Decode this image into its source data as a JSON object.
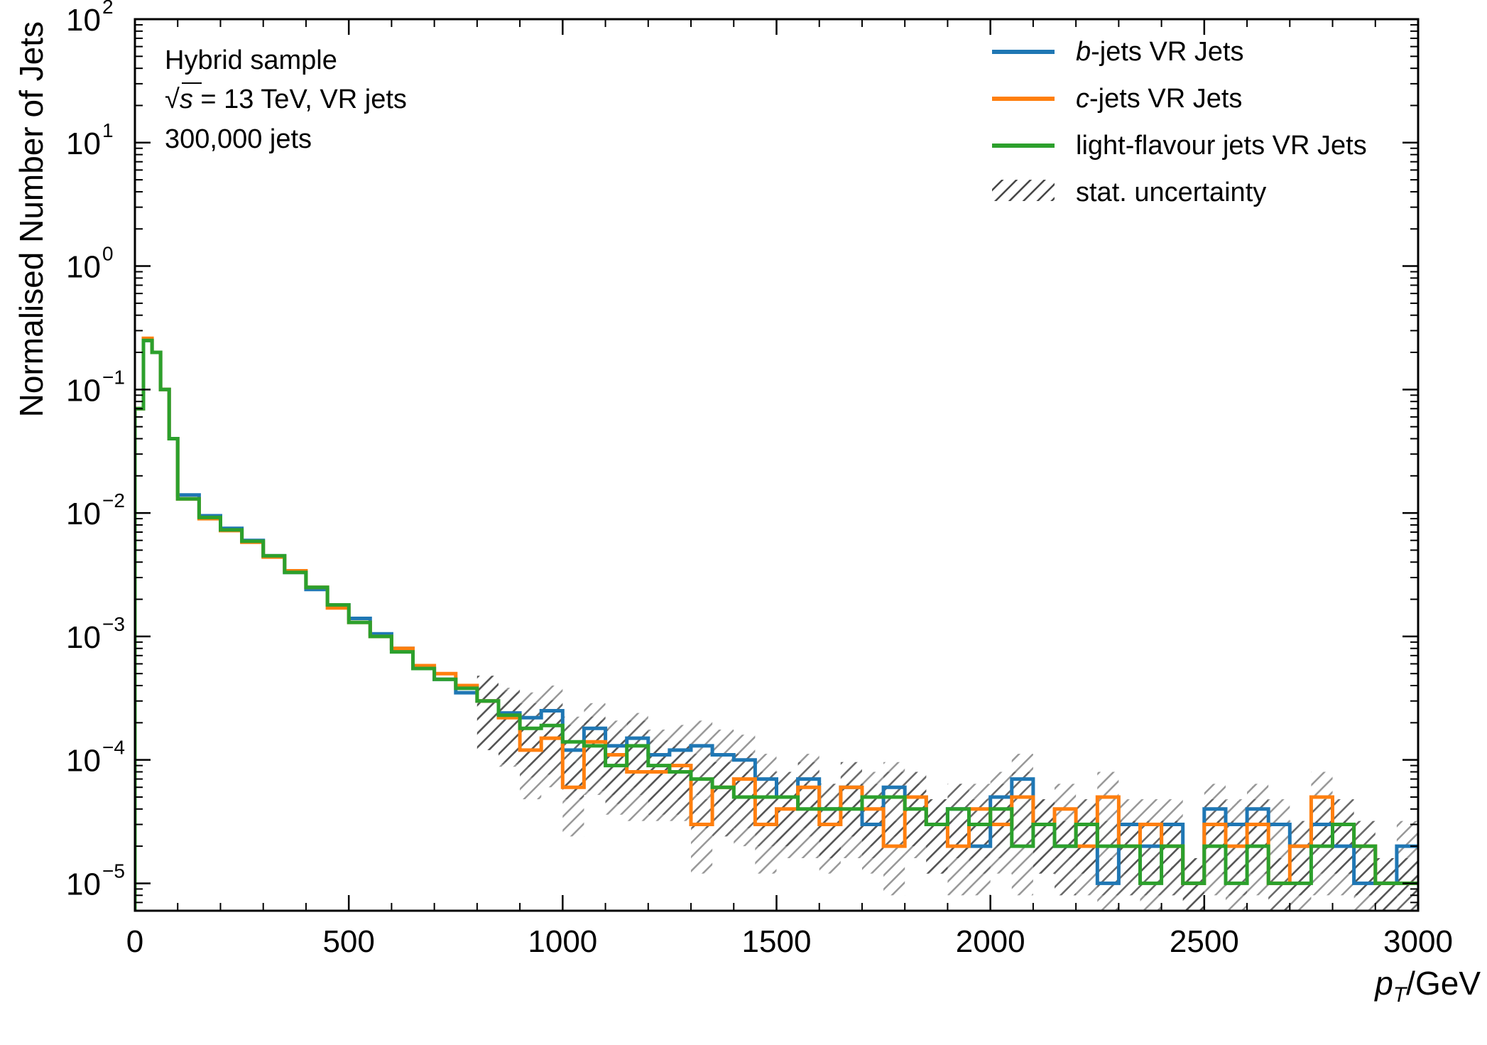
{
  "chart_data": {
    "type": "line",
    "title": "",
    "xlabel": "p_T/GeV",
    "xlabel_parts": {
      "symbol": "p",
      "subscript": "T",
      "unit": "/GeV"
    },
    "ylabel": "Normalised Number of Jets",
    "xlim": [
      0,
      3000
    ],
    "ylim": [
      6e-06,
      100
    ],
    "yscale": "log",
    "grid": false,
    "legend_position": "top-right",
    "x_ticks": [
      0,
      500,
      1000,
      1500,
      2000,
      2500,
      3000
    ],
    "x_tick_labels": [
      "0",
      "500",
      "1000",
      "1500",
      "2000",
      "2500",
      "3000"
    ],
    "y_ticks": [
      {
        "value": 1e-05,
        "base": "10",
        "exp": "−5"
      },
      {
        "value": 0.0001,
        "base": "10",
        "exp": "−4"
      },
      {
        "value": 0.001,
        "base": "10",
        "exp": "−3"
      },
      {
        "value": 0.01,
        "base": "10",
        "exp": "−2"
      },
      {
        "value": 0.1,
        "base": "10",
        "exp": "−1"
      },
      {
        "value": 1,
        "base": "10",
        "exp": "0"
      },
      {
        "value": 10,
        "base": "10",
        "exp": "1"
      },
      {
        "value": 100,
        "base": "10",
        "exp": "2"
      }
    ],
    "annotations": {
      "line1": "Hybrid sample",
      "line2_sqrt": "√",
      "line2_s": "s",
      "line2_rest": " = 13 TeV, VR jets",
      "line3": "300,000 jets"
    },
    "legend": [
      {
        "prefix": "b",
        "text": "-jets VR Jets",
        "color": "#1f77b4",
        "kind": "line"
      },
      {
        "prefix": "c",
        "text": "-jets VR Jets",
        "color": "#ff7f0e",
        "kind": "line"
      },
      {
        "prefix": "",
        "text": "light-flavour jets VR Jets",
        "color": "#2ca02c",
        "kind": "line"
      },
      {
        "prefix": "",
        "text": "stat. uncertainty",
        "color": "#555555",
        "kind": "hatch"
      }
    ],
    "series": [
      {
        "name": "b-jets VR Jets",
        "color": "#1f77b4",
        "x": [
          0,
          20,
          40,
          60,
          80,
          100,
          150,
          200,
          250,
          300,
          350,
          400,
          450,
          500,
          550,
          600,
          650,
          700,
          750,
          800,
          850,
          900,
          950,
          1000,
          1050,
          1100,
          1150,
          1200,
          1250,
          1300,
          1350,
          1400,
          1450,
          1500,
          1550,
          1600,
          1650,
          1700,
          1750,
          1800,
          1850,
          1900,
          1950,
          2000,
          2050,
          2100,
          2150,
          2200,
          2250,
          2300,
          2350,
          2400,
          2450,
          2500,
          2550,
          2600,
          2650,
          2700,
          2750,
          2800,
          2850,
          2900,
          2950
        ],
        "y": [
          0.07,
          0.25,
          0.2,
          0.1,
          0.04,
          0.014,
          0.0095,
          0.0075,
          0.006,
          0.0045,
          0.0033,
          0.0024,
          0.0018,
          0.0014,
          0.00105,
          0.0008,
          0.00055,
          0.00045,
          0.00035,
          0.0003,
          0.00024,
          0.00022,
          0.00025,
          0.00012,
          0.00018,
          0.00013,
          0.00015,
          0.00011,
          0.00012,
          0.00013,
          0.00011,
          0.0001,
          7e-05,
          5e-05,
          7e-05,
          4e-05,
          6e-05,
          3e-05,
          6e-05,
          5e-05,
          3e-05,
          4e-05,
          2e-05,
          5e-05,
          7e-05,
          3e-05,
          2e-05,
          3e-05,
          1e-05,
          3e-05,
          2e-05,
          3e-05,
          1e-05,
          4e-05,
          3e-05,
          4e-05,
          3e-05,
          2e-05,
          3e-05,
          2e-05,
          1e-05,
          1e-05,
          2e-05
        ]
      },
      {
        "name": "c-jets VR Jets",
        "color": "#ff7f0e",
        "x": [
          0,
          20,
          40,
          60,
          80,
          100,
          150,
          200,
          250,
          300,
          350,
          400,
          450,
          500,
          550,
          600,
          650,
          700,
          750,
          800,
          850,
          900,
          950,
          1000,
          1050,
          1100,
          1150,
          1200,
          1250,
          1300,
          1350,
          1400,
          1450,
          1500,
          1550,
          1600,
          1650,
          1700,
          1750,
          1800,
          1850,
          1900,
          1950,
          2000,
          2050,
          2100,
          2150,
          2200,
          2250,
          2300,
          2350,
          2400,
          2450,
          2500,
          2550,
          2600,
          2650,
          2700,
          2750,
          2800,
          2850,
          2900,
          2950
        ],
        "y": [
          0.07,
          0.26,
          0.2,
          0.1,
          0.04,
          0.013,
          0.009,
          0.0072,
          0.0058,
          0.0044,
          0.0034,
          0.0025,
          0.0017,
          0.0013,
          0.001,
          0.0008,
          0.00058,
          0.0005,
          0.0004,
          0.0003,
          0.00022,
          0.00012,
          0.00015,
          6e-05,
          0.00014,
          0.00011,
          8e-05,
          8e-05,
          9e-05,
          3e-05,
          6e-05,
          7e-05,
          3e-05,
          4e-05,
          6e-05,
          3e-05,
          6e-05,
          4e-05,
          2e-05,
          5e-05,
          3e-05,
          2e-05,
          4e-05,
          3e-05,
          5e-05,
          3e-05,
          4e-05,
          2e-05,
          5e-05,
          2e-05,
          3e-05,
          2e-05,
          1e-05,
          3e-05,
          2e-05,
          3e-05,
          1e-05,
          2e-05,
          5e-05,
          3e-05,
          2e-05,
          1e-05,
          1e-05
        ]
      },
      {
        "name": "light-flavour jets VR Jets",
        "color": "#2ca02c",
        "x": [
          0,
          20,
          40,
          60,
          80,
          100,
          150,
          200,
          250,
          300,
          350,
          400,
          450,
          500,
          550,
          600,
          650,
          700,
          750,
          800,
          850,
          900,
          950,
          1000,
          1050,
          1100,
          1150,
          1200,
          1250,
          1300,
          1350,
          1400,
          1450,
          1500,
          1550,
          1600,
          1650,
          1700,
          1750,
          1800,
          1850,
          1900,
          1950,
          2000,
          2050,
          2100,
          2150,
          2200,
          2250,
          2300,
          2350,
          2400,
          2450,
          2500,
          2550,
          2600,
          2650,
          2700,
          2750,
          2800,
          2850,
          2900,
          2950
        ],
        "y": [
          0.07,
          0.25,
          0.2,
          0.1,
          0.04,
          0.013,
          0.0092,
          0.0073,
          0.0059,
          0.0045,
          0.0033,
          0.0025,
          0.0018,
          0.0013,
          0.001,
          0.00075,
          0.00055,
          0.00045,
          0.00038,
          0.0003,
          0.00023,
          0.00018,
          0.00019,
          0.00014,
          0.00013,
          9e-05,
          0.00013,
          9e-05,
          8e-05,
          7e-05,
          6e-05,
          5e-05,
          5e-05,
          5e-05,
          4e-05,
          4e-05,
          4e-05,
          5e-05,
          5e-05,
          4e-05,
          3e-05,
          4e-05,
          3e-05,
          4e-05,
          2e-05,
          3e-05,
          2e-05,
          3e-05,
          2e-05,
          2e-05,
          1e-05,
          2e-05,
          1e-05,
          2e-05,
          1e-05,
          2e-05,
          1e-05,
          1e-05,
          2e-05,
          3e-05,
          2e-05,
          1e-05,
          1e-05
        ]
      }
    ]
  }
}
